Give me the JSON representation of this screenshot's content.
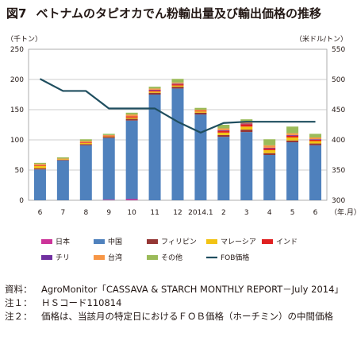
{
  "figure": {
    "number": "図7",
    "title": "ベトナムのタピオカでん粉輸出量及び輸出価格の推移"
  },
  "axes": {
    "left_unit": "（千トン）",
    "right_unit": "（米ドル/トン）",
    "x_unit": "（年.月）"
  },
  "chart_data": {
    "type": "bar",
    "stacked": true,
    "categories": [
      "6",
      "7",
      "8",
      "9",
      "10",
      "11",
      "12",
      "2014.1",
      "2",
      "3",
      "4",
      "5",
      "6"
    ],
    "series": [
      {
        "name": "日本",
        "color": "#cc3399",
        "values": [
          0,
          0,
          0,
          1,
          2,
          0,
          0,
          0,
          0,
          0,
          0,
          0,
          0
        ]
      },
      {
        "name": "中国",
        "color": "#4f81bd",
        "values": [
          51,
          66,
          91,
          102,
          130,
          175,
          185,
          142,
          105,
          113,
          75,
          96,
          91
        ]
      },
      {
        "name": "フィリピン",
        "color": "#953735",
        "values": [
          2,
          1,
          2,
          2,
          3,
          3,
          3,
          3,
          3,
          4,
          3,
          3,
          3
        ]
      },
      {
        "name": "マレーシア",
        "color": "#f2c314",
        "values": [
          4,
          1,
          2,
          1,
          2,
          2,
          2,
          2,
          4,
          5,
          5,
          5,
          4
        ]
      },
      {
        "name": "インド",
        "color": "#e02020",
        "values": [
          1,
          0,
          1,
          1,
          2,
          2,
          2,
          1,
          3,
          4,
          3,
          3,
          2
        ]
      },
      {
        "name": "チリ",
        "color": "#7030a0",
        "values": [
          0,
          0,
          0,
          0,
          0,
          1,
          1,
          0,
          1,
          1,
          1,
          1,
          1
        ]
      },
      {
        "name": "台湾",
        "color": "#f79646",
        "values": [
          2,
          1,
          2,
          1,
          3,
          2,
          2,
          2,
          3,
          4,
          4,
          3,
          3
        ]
      },
      {
        "name": "その他",
        "color": "#9bbb59",
        "values": [
          2,
          2,
          3,
          2,
          3,
          3,
          6,
          3,
          6,
          3,
          10,
          11,
          6
        ]
      }
    ],
    "line": {
      "name": "FOB価格",
      "color": "#1f4e5f",
      "axis": "right",
      "values": [
        501,
        481,
        481,
        452,
        452,
        452,
        430,
        412,
        428,
        430,
        430,
        430,
        430
      ]
    },
    "y_left": {
      "ylim": [
        0,
        250
      ],
      "ticks": [
        0,
        50,
        100,
        150,
        200,
        250
      ]
    },
    "y_right": {
      "ylim": [
        300,
        550
      ],
      "ticks": [
        300,
        350,
        400,
        450,
        500,
        550
      ]
    },
    "grid": true,
    "legend_position": "bottom"
  },
  "notes": [
    {
      "label": "資料：",
      "text": "AgroMonitor「CASSAVA & STARCH MONTHLY REPORT－July 2014」"
    },
    {
      "label": "注１：",
      "text": "ＨＳコード110814"
    },
    {
      "label": "注２：",
      "text": "価格は、当該月の特定日におけるＦＯＢ価格（ホーチミン）の中間価格"
    }
  ]
}
